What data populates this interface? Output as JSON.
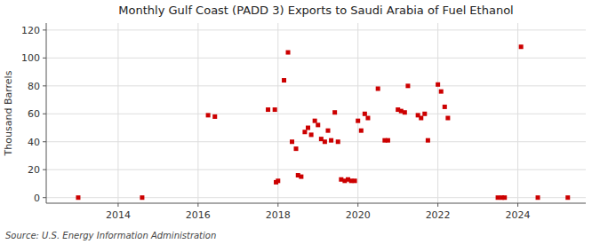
{
  "chart_data": {
    "type": "scatter",
    "title": "Monthly Gulf Coast (PADD 3) Exports to Saudi Arabia of Fuel Ethanol",
    "y_label": "Thousand Barrels",
    "annotations": [
      "Source: U.S. Energy Information Administration"
    ],
    "color": "#cc0000",
    "marker": "square",
    "grid": true,
    "xlim": [
      2012.2,
      2025.7
    ],
    "xticks": [
      2014,
      2016,
      2018,
      2020,
      2022,
      2024
    ],
    "ylim": [
      -4,
      125
    ],
    "yticks": [
      0,
      20,
      40,
      60,
      80,
      100,
      120
    ],
    "x": [
      2013.0,
      2014.6,
      2016.25,
      2016.42,
      2017.75,
      2017.92,
      2017.95,
      2018.0,
      2018.15,
      2018.25,
      2018.35,
      2018.45,
      2018.5,
      2018.58,
      2018.67,
      2018.75,
      2018.83,
      2018.92,
      2019.0,
      2019.08,
      2019.17,
      2019.25,
      2019.33,
      2019.42,
      2019.5,
      2019.58,
      2019.67,
      2019.75,
      2019.83,
      2019.92,
      2020.0,
      2020.08,
      2020.17,
      2020.25,
      2020.5,
      2020.67,
      2020.75,
      2021.0,
      2021.08,
      2021.17,
      2021.25,
      2021.5,
      2021.58,
      2021.67,
      2021.75,
      2022.0,
      2022.08,
      2022.17,
      2022.25,
      2023.5,
      2023.6,
      2023.67,
      2024.08,
      2024.5,
      2025.25
    ],
    "values": [
      0,
      0,
      59,
      58,
      63,
      63,
      11,
      12,
      84,
      104,
      40,
      35,
      16,
      15,
      47,
      50,
      45,
      55,
      52,
      42,
      40,
      48,
      41,
      61,
      40,
      13,
      12,
      13,
      12,
      12,
      55,
      48,
      60,
      57,
      78,
      41,
      41,
      63,
      62,
      61,
      80,
      59,
      57,
      60,
      41,
      81,
      76,
      65,
      57,
      0,
      0,
      0,
      108,
      0,
      0
    ]
  }
}
